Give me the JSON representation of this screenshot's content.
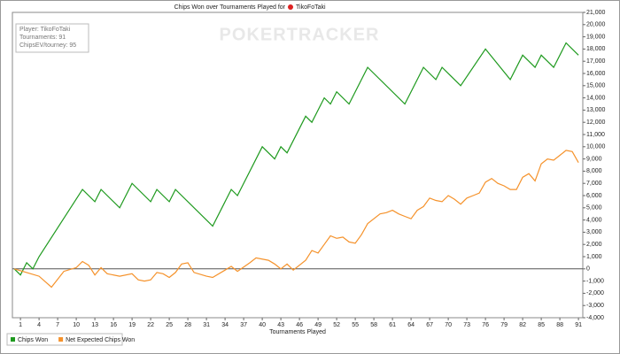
{
  "chart_data": {
    "type": "line",
    "title": "Chips Won over Tournaments Played for",
    "player_name": "TikoFoTaki",
    "watermark": "POKERTRACKER",
    "info": [
      "Player: TikoFoTaki",
      "Tournaments: 91",
      "ChipsEV/tourney: 95"
    ],
    "x_label": "Tournaments Played",
    "xlim": [
      -0.3,
      91.7
    ],
    "xticks": [
      1,
      4,
      7,
      10,
      13,
      16,
      19,
      22,
      25,
      28,
      31,
      34,
      37,
      40,
      43,
      46,
      49,
      52,
      55,
      58,
      61,
      64,
      67,
      70,
      73,
      76,
      79,
      82,
      85,
      88,
      91
    ],
    "ylim": [
      -4000,
      21000
    ],
    "yticks": [
      {
        "value": -4000,
        "label": "-4,000"
      },
      {
        "value": -3000,
        "label": "-3,000"
      },
      {
        "value": -2000,
        "label": "-2,000"
      },
      {
        "value": -1000,
        "label": "-1,000"
      },
      0,
      {
        "value": 1000,
        "label": "1,000"
      },
      {
        "value": 2000,
        "label": "2,000"
      },
      {
        "value": 3000,
        "label": "3,000"
      },
      {
        "value": 4000,
        "label": "4,000"
      },
      {
        "value": 5000,
        "label": "5,000"
      },
      {
        "value": 6000,
        "label": "6,000"
      },
      {
        "value": 7000,
        "label": "7,000"
      },
      {
        "value": 8000,
        "label": "8,000"
      },
      {
        "value": 9000,
        "label": "9,000"
      },
      {
        "value": 10000,
        "label": "10,000"
      },
      {
        "value": 11000,
        "label": "11,000"
      },
      {
        "value": 12000,
        "label": "12,000"
      },
      {
        "value": 13000,
        "label": "13,000"
      },
      {
        "value": 14000,
        "label": "14,000"
      },
      {
        "value": 15000,
        "label": "15,000"
      },
      {
        "value": 16000,
        "label": "16,000"
      },
      {
        "value": 17000,
        "label": "17,000"
      },
      {
        "value": 18000,
        "label": "18,000"
      },
      {
        "value": 19000,
        "label": "19,000"
      },
      {
        "value": 20000,
        "label": "20,000"
      },
      {
        "value": 21000,
        "label": "21,000"
      }
    ],
    "series": [
      {
        "name": "Chips Won",
        "color": "#1f9a1f",
        "x": [
          0,
          1,
          2,
          3,
          4,
          11,
          13,
          14,
          17,
          19,
          22,
          23,
          25,
          26,
          32,
          35,
          36,
          40,
          42,
          43,
          44,
          47,
          48,
          50,
          51,
          52,
          54,
          57,
          63,
          66,
          68,
          69,
          72,
          76,
          80,
          82,
          84,
          85,
          87,
          89,
          91
        ],
        "values": [
          0,
          -500,
          500,
          0,
          1000,
          6500,
          5500,
          6500,
          5000,
          7000,
          5500,
          6500,
          5500,
          6500,
          3500,
          6500,
          6000,
          10000,
          9000,
          10000,
          9500,
          12500,
          12000,
          14000,
          13500,
          14500,
          13500,
          16500,
          13500,
          16500,
          15500,
          16500,
          15000,
          18000,
          15500,
          17500,
          16500,
          17500,
          16500,
          18500,
          17500
        ]
      },
      {
        "name": "Net Expected Chips Won",
        "color": "#f5922b",
        "x": [
          0,
          2,
          4,
          6,
          8,
          10,
          11,
          12,
          13,
          14,
          15,
          17,
          19,
          20,
          21,
          22,
          23,
          24,
          25,
          26,
          27,
          28,
          29,
          31,
          32,
          34,
          35,
          36,
          38,
          39,
          41,
          42,
          43,
          44,
          45,
          47,
          48,
          49,
          50,
          51,
          52,
          53,
          54,
          55,
          56,
          57,
          59,
          60,
          61,
          62,
          63,
          64,
          65,
          66,
          67,
          68,
          69,
          70,
          71,
          72,
          73,
          74,
          75,
          76,
          77,
          78,
          79,
          80,
          81,
          82,
          83,
          84,
          85,
          86,
          87,
          88,
          89,
          90,
          91
        ],
        "values": [
          0,
          -300,
          -600,
          -1500,
          -200,
          100,
          600,
          300,
          -500,
          100,
          -400,
          -600,
          -400,
          -900,
          -1000,
          -900,
          -300,
          -400,
          -700,
          -300,
          400,
          500,
          -300,
          -600,
          -700,
          -100,
          200,
          -200,
          500,
          900,
          700,
          400,
          0,
          400,
          -100,
          700,
          1500,
          1300,
          2000,
          2700,
          2500,
          2600,
          2200,
          2100,
          2800,
          3700,
          4500,
          4600,
          4800,
          4500,
          4300,
          4100,
          4800,
          5100,
          5800,
          5600,
          5500,
          6000,
          5700,
          5300,
          5800,
          6000,
          6200,
          7100,
          7400,
          7000,
          6800,
          6500,
          6500,
          7500,
          7800,
          7200,
          8600,
          9000,
          8900,
          9300,
          9700,
          9600,
          8700
        ]
      }
    ]
  }
}
